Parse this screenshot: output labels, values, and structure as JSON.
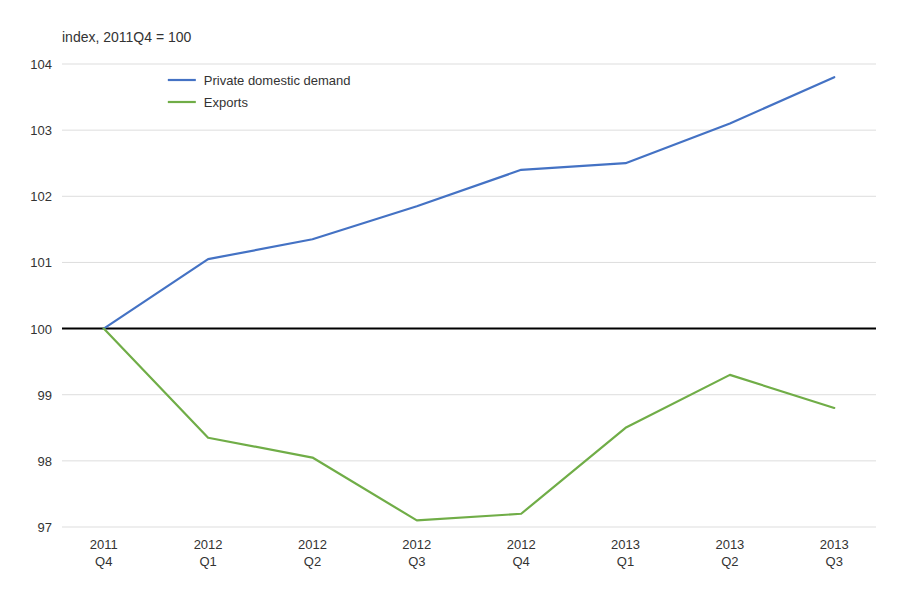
{
  "chart_data": {
    "type": "line",
    "title": "index, 2011Q4 = 100",
    "categories": [
      "2011\nQ4",
      "2012\nQ1",
      "2012\nQ2",
      "2012\nQ3",
      "2012\nQ4",
      "2013\nQ1",
      "2013\nQ2",
      "2013\nQ3"
    ],
    "series": [
      {
        "name": "Private domestic demand",
        "color": "#4472C4",
        "values": [
          100.0,
          101.05,
          101.35,
          101.85,
          102.4,
          102.5,
          103.1,
          103.8
        ]
      },
      {
        "name": "Exports",
        "color": "#70AD47",
        "values": [
          100.0,
          98.35,
          98.05,
          97.1,
          97.2,
          98.5,
          99.3,
          98.8
        ]
      }
    ],
    "reference_line": {
      "value": 100,
      "color": "#000000"
    },
    "ylim": [
      97,
      104
    ],
    "yticks": [
      97,
      98,
      99,
      100,
      101,
      102,
      103,
      104
    ],
    "grid": true,
    "legend": "top-left"
  }
}
